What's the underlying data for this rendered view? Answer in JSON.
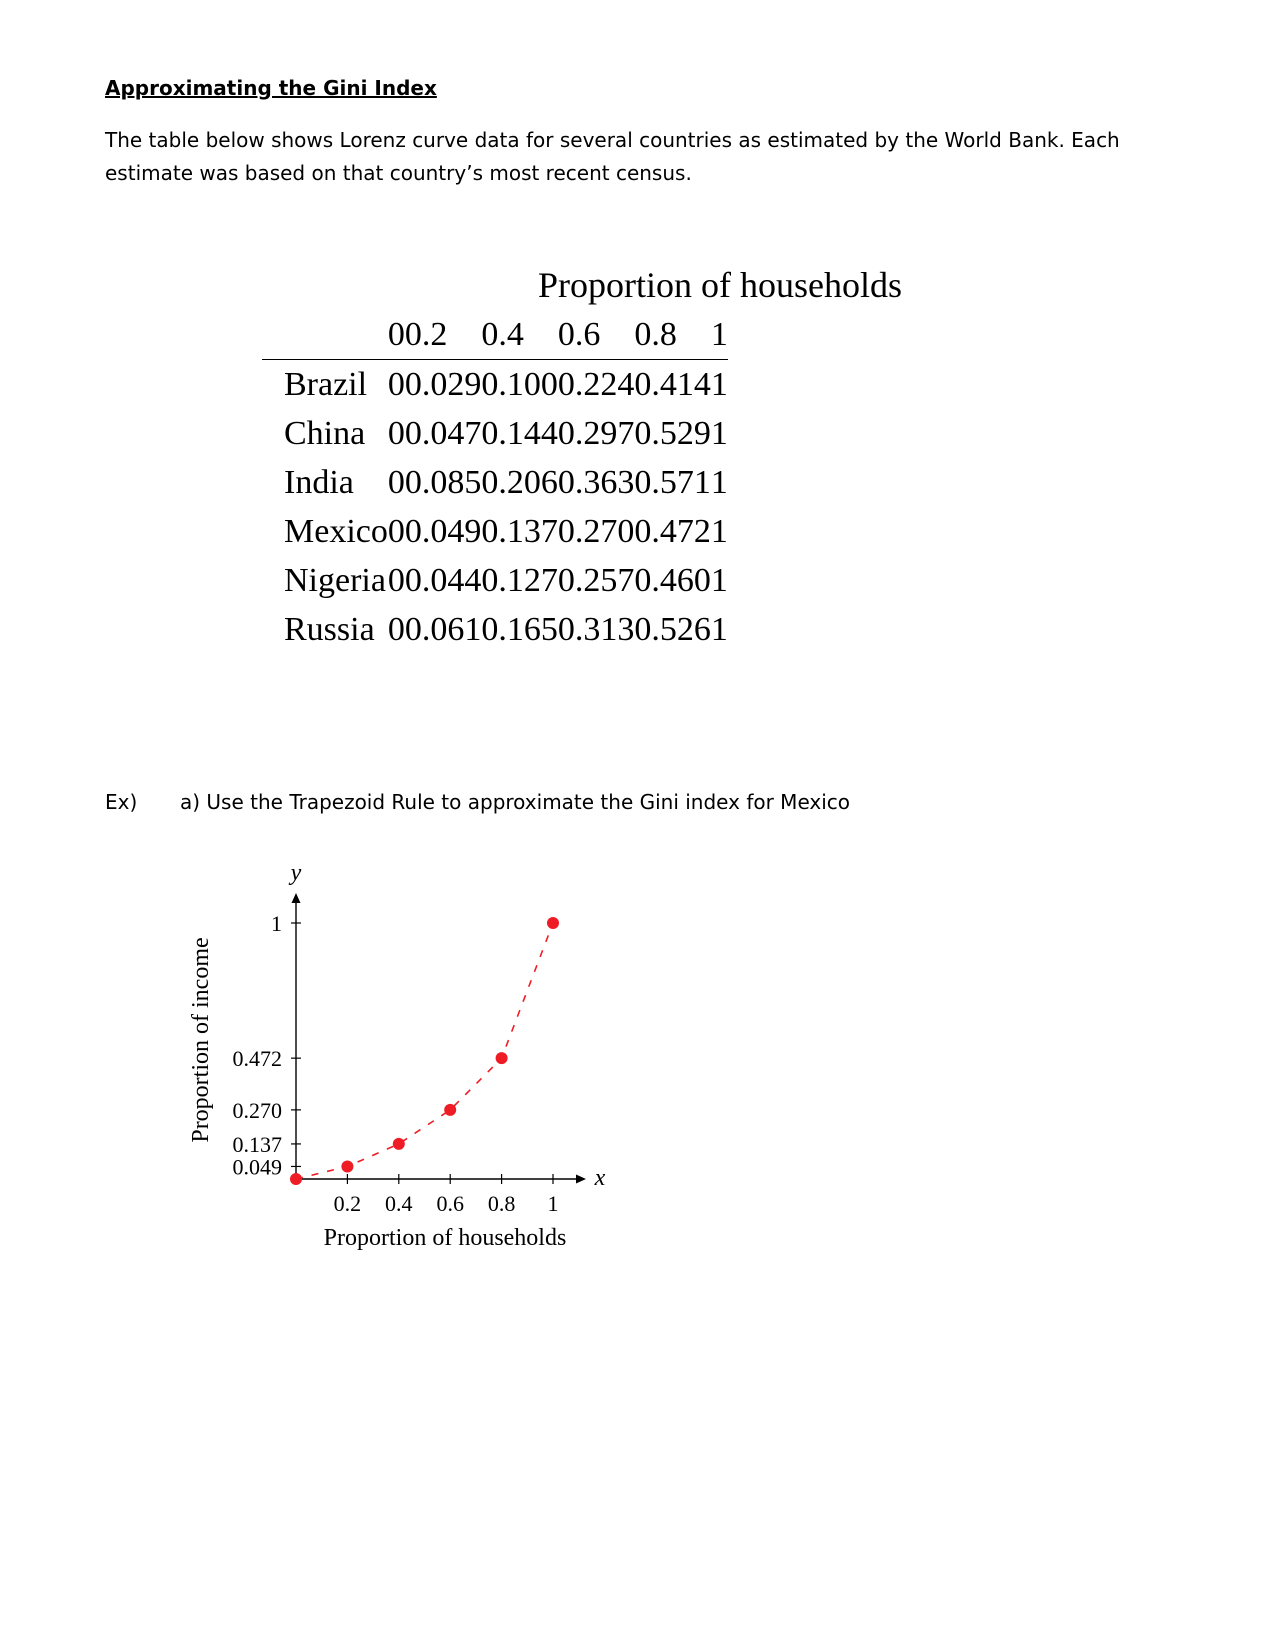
{
  "heading": "Approximating the Gini Index",
  "intro": "The table below shows Lorenz curve data for several countries as estimated by the World Bank. Each estimate was based on that country’s most recent census.",
  "table": {
    "title": "Proportion of households",
    "columns": [
      "",
      "0",
      "0.2",
      "0.4",
      "0.6",
      "0.8",
      "1"
    ],
    "rows": [
      [
        "Brazil",
        "0",
        "0.029",
        "0.100",
        "0.224",
        "0.414",
        "1"
      ],
      [
        "China",
        "0",
        "0.047",
        "0.144",
        "0.297",
        "0.529",
        "1"
      ],
      [
        "India",
        "0",
        "0.085",
        "0.206",
        "0.363",
        "0.571",
        "1"
      ],
      [
        "Mexico",
        "0",
        "0.049",
        "0.137",
        "0.270",
        "0.472",
        "1"
      ],
      [
        "Nigeria",
        "0",
        "0.044",
        "0.127",
        "0.257",
        "0.460",
        "1"
      ],
      [
        "Russia",
        "0",
        "0.061",
        "0.165",
        "0.313",
        "0.526",
        "1"
      ]
    ]
  },
  "example": {
    "label": "Ex)",
    "question": "a) Use the Trapezoid Rule to approximate the Gini index for Mexico"
  },
  "chart_data": {
    "type": "scatter",
    "line_style": "dashed",
    "point_color": "#ee1c25",
    "x": [
      0,
      0.2,
      0.4,
      0.6,
      0.8,
      1
    ],
    "y": [
      0,
      0.049,
      0.137,
      0.27,
      0.472,
      1
    ],
    "xlabel": "Proportion of households",
    "ylabel": "Proportion of income",
    "x_axis_symbol": "x",
    "y_axis_symbol": "y",
    "x_ticks": [
      "0.2",
      "0.4",
      "0.6",
      "0.8",
      "1"
    ],
    "y_ticks": [
      "0.049",
      "0.137",
      "0.270",
      "0.472",
      "1"
    ],
    "xlim": [
      0,
      1
    ],
    "ylim": [
      0,
      1
    ]
  }
}
